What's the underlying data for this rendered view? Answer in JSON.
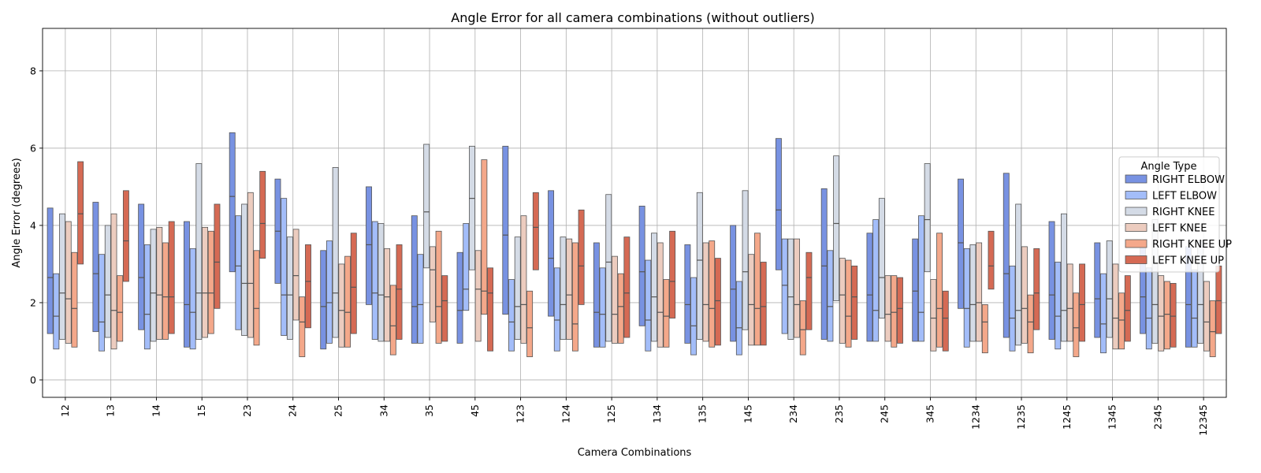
{
  "chart_data": {
    "type": "boxplot",
    "title": "Angle Error for all camera combinations (without outliers)",
    "xlabel": "Camera Combinations",
    "ylabel": "Angle Error (degrees)",
    "ylim": [
      -0.45,
      9.1
    ],
    "yticks": [
      0,
      2,
      4,
      6,
      8
    ],
    "grid": true,
    "legend": {
      "title": "Angle Type",
      "placement": "right"
    },
    "categories": [
      "12",
      "13",
      "14",
      "15",
      "23",
      "24",
      "25",
      "34",
      "35",
      "45",
      "123",
      "124",
      "125",
      "134",
      "135",
      "145",
      "234",
      "235",
      "245",
      "345",
      "1234",
      "1235",
      "1245",
      "1345",
      "2345",
      "12345"
    ],
    "series": [
      {
        "name": "RIGHT ELBOW",
        "color": "#7892e2",
        "q1": [
          1.2,
          1.25,
          1.3,
          0.85,
          2.8,
          2.5,
          0.8,
          1.95,
          0.95,
          0.95,
          1.7,
          1.65,
          0.85,
          1.4,
          0.95,
          1.0,
          2.85,
          1.05,
          1.0,
          1.0,
          1.85,
          1.1,
          1.05,
          1.1,
          1.2,
          0.85
        ],
        "median": [
          2.65,
          2.75,
          2.65,
          1.95,
          4.75,
          3.85,
          1.9,
          3.5,
          1.9,
          1.8,
          3.75,
          3.15,
          1.75,
          2.8,
          1.95,
          2.35,
          4.4,
          2.95,
          2.2,
          2.3,
          3.55,
          2.75,
          2.2,
          2.1,
          2.15,
          1.95
        ],
        "q3": [
          4.45,
          4.6,
          4.55,
          4.1,
          6.4,
          5.2,
          3.35,
          5.0,
          4.25,
          3.3,
          6.05,
          4.9,
          3.55,
          4.5,
          3.5,
          4.0,
          6.25,
          4.95,
          3.8,
          3.65,
          5.2,
          5.35,
          4.1,
          3.55,
          3.55,
          3.45
        ]
      },
      {
        "name": "LEFT ELBOW",
        "color": "#a3bdf9",
        "q1": [
          0.8,
          0.75,
          0.8,
          0.8,
          1.3,
          1.15,
          0.95,
          1.05,
          0.95,
          1.8,
          0.75,
          0.75,
          0.85,
          0.75,
          0.65,
          0.65,
          1.2,
          1.0,
          1.0,
          1.0,
          0.85,
          0.75,
          0.8,
          0.7,
          0.8,
          0.85
        ],
        "median": [
          1.65,
          1.5,
          1.7,
          1.75,
          2.95,
          2.2,
          2.0,
          2.25,
          1.95,
          2.35,
          1.5,
          1.55,
          1.7,
          1.55,
          1.4,
          1.35,
          2.45,
          1.9,
          1.8,
          1.75,
          1.85,
          1.6,
          1.65,
          1.45,
          1.6,
          1.6
        ],
        "q3": [
          2.75,
          3.25,
          3.5,
          3.4,
          4.25,
          4.7,
          3.6,
          4.1,
          3.25,
          4.05,
          2.6,
          2.9,
          2.9,
          3.1,
          2.65,
          2.55,
          3.65,
          3.35,
          4.15,
          4.25,
          3.4,
          2.95,
          3.05,
          2.75,
          2.9,
          2.85
        ]
      },
      {
        "name": "RIGHT KNEE",
        "color": "#d4dbe6",
        "q1": [
          1.05,
          1.1,
          1.0,
          1.05,
          1.15,
          1.05,
          1.1,
          1.0,
          2.9,
          2.85,
          1.05,
          1.05,
          1.0,
          1.0,
          1.05,
          1.3,
          1.05,
          2.05,
          1.6,
          2.8,
          1.0,
          0.9,
          1.0,
          1.1,
          0.95,
          0.95
        ],
        "median": [
          2.25,
          2.2,
          2.25,
          2.25,
          2.5,
          2.2,
          2.25,
          2.2,
          4.35,
          4.7,
          1.9,
          1.95,
          3.05,
          2.15,
          3.1,
          2.8,
          2.15,
          4.05,
          2.65,
          4.15,
          1.95,
          1.8,
          1.8,
          2.1,
          1.95,
          1.95
        ],
        "q3": [
          4.3,
          4.0,
          3.9,
          5.6,
          4.55,
          3.7,
          5.5,
          4.05,
          6.1,
          6.05,
          3.7,
          3.7,
          4.8,
          3.8,
          4.85,
          4.9,
          3.65,
          5.8,
          4.7,
          5.6,
          3.5,
          4.55,
          4.3,
          3.6,
          4.15,
          3.6
        ]
      },
      {
        "name": "LEFT KNEE",
        "color": "#ecccbf",
        "q1": [
          0.95,
          0.8,
          1.05,
          1.1,
          1.1,
          1.55,
          0.85,
          1.0,
          1.5,
          1.0,
          0.95,
          1.05,
          0.95,
          0.85,
          1.0,
          0.9,
          1.1,
          0.95,
          1.0,
          0.75,
          1.0,
          0.95,
          1.0,
          0.8,
          0.75,
          0.75
        ],
        "median": [
          2.1,
          1.8,
          2.2,
          2.25,
          2.5,
          2.7,
          1.8,
          2.15,
          2.85,
          2.35,
          1.95,
          2.2,
          1.7,
          1.75,
          1.95,
          1.95,
          1.95,
          2.2,
          1.7,
          1.6,
          2.0,
          1.85,
          1.85,
          1.6,
          1.65,
          1.5
        ],
        "q3": [
          4.1,
          4.3,
          3.95,
          3.95,
          4.85,
          3.9,
          3.0,
          3.4,
          3.45,
          3.35,
          4.25,
          3.65,
          3.2,
          3.55,
          3.55,
          3.25,
          3.65,
          3.15,
          2.7,
          2.6,
          3.55,
          3.45,
          3.0,
          3.0,
          2.7,
          2.55
        ]
      },
      {
        "name": "RIGHT KNEE UP",
        "color": "#f4a88a",
        "q1": [
          0.85,
          1.0,
          1.05,
          1.2,
          0.9,
          0.6,
          0.85,
          0.65,
          0.95,
          1.7,
          0.6,
          0.75,
          0.95,
          0.85,
          0.85,
          0.9,
          0.65,
          0.85,
          0.85,
          0.85,
          0.7,
          0.7,
          0.6,
          0.8,
          0.8,
          0.6
        ],
        "median": [
          1.85,
          1.75,
          2.15,
          2.25,
          1.85,
          1.5,
          1.75,
          1.4,
          1.9,
          2.3,
          1.35,
          1.45,
          1.9,
          1.65,
          1.85,
          1.85,
          1.3,
          1.65,
          1.75,
          1.85,
          1.5,
          1.5,
          1.35,
          1.55,
          1.7,
          1.25
        ],
        "q3": [
          3.3,
          2.7,
          3.55,
          3.85,
          3.35,
          2.15,
          3.2,
          2.45,
          3.85,
          5.7,
          2.3,
          3.55,
          2.75,
          2.6,
          3.6,
          3.8,
          2.05,
          3.1,
          2.7,
          3.8,
          1.95,
          2.2,
          2.25,
          2.25,
          2.55,
          2.05
        ]
      },
      {
        "name": "LEFT KNEE UP",
        "color": "#d56a54",
        "q1": [
          3.0,
          2.55,
          1.2,
          1.85,
          3.15,
          1.35,
          1.2,
          1.05,
          1.0,
          0.75,
          2.85,
          1.95,
          1.1,
          1.6,
          0.9,
          0.9,
          1.3,
          1.05,
          0.95,
          0.75,
          2.35,
          1.3,
          1.0,
          1.0,
          0.85,
          1.2
        ],
        "median": [
          4.3,
          3.6,
          2.15,
          3.05,
          4.05,
          2.55,
          2.4,
          2.35,
          2.05,
          2.25,
          3.95,
          2.95,
          2.25,
          2.55,
          2.05,
          1.9,
          2.65,
          2.15,
          1.85,
          1.6,
          2.95,
          2.25,
          1.95,
          1.8,
          1.65,
          2.05
        ],
        "q3": [
          5.65,
          4.9,
          4.1,
          4.55,
          5.4,
          3.5,
          3.8,
          3.5,
          2.7,
          2.9,
          4.85,
          4.4,
          3.7,
          3.85,
          3.15,
          3.05,
          3.3,
          2.95,
          2.65,
          2.3,
          3.85,
          3.4,
          3.0,
          2.7,
          2.5,
          2.95
        ]
      }
    ]
  }
}
